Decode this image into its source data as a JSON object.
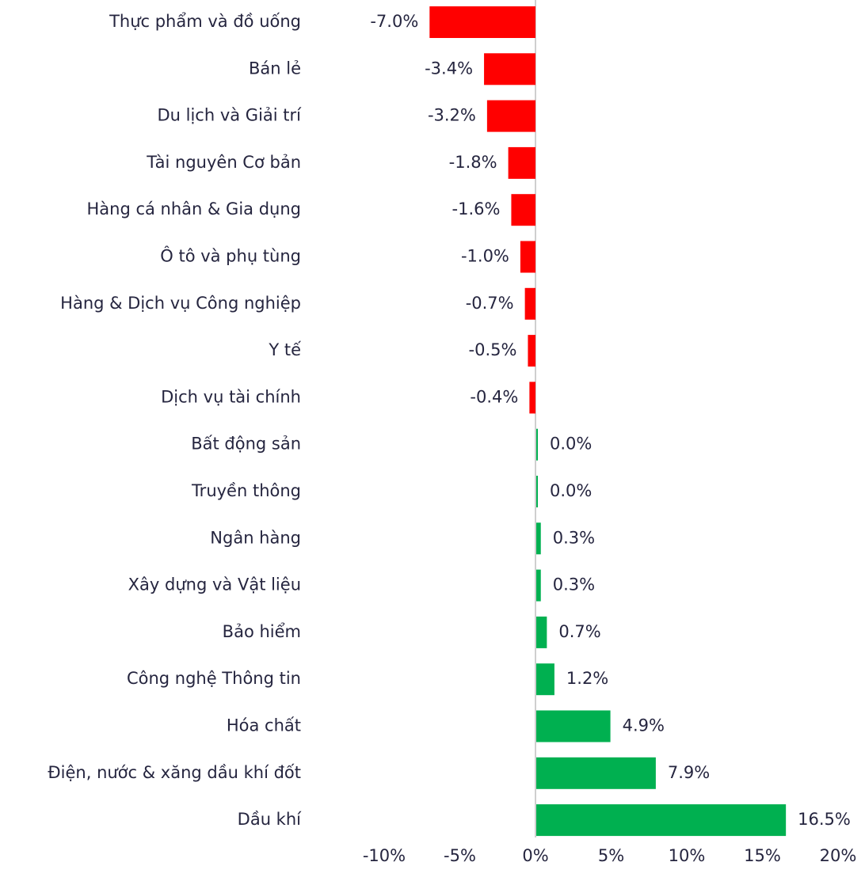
{
  "chart_data": {
    "type": "barh",
    "categories": [
      "Thực phẩm và đồ uống",
      "Bán lẻ",
      "Du lịch và Giải trí",
      "Tài nguyên Cơ bản",
      "Hàng cá nhân & Gia dụng",
      "Ô tô và phụ tùng",
      "Hàng & Dịch vụ Công nghiệp",
      "Y tế",
      "Dịch vụ tài chính",
      "Bất động sản",
      "Truyền thông",
      "Ngân hàng",
      "Xây dựng và Vật liệu",
      "Bảo hiểm",
      "Công nghệ Thông tin",
      "Hóa chất",
      "Điện, nước & xăng dầu khí đốt",
      "Dầu khí"
    ],
    "values": [
      -7.0,
      -3.4,
      -3.2,
      -1.8,
      -1.6,
      -1.0,
      -0.7,
      -0.5,
      -0.4,
      0.0,
      0.0,
      0.3,
      0.3,
      0.7,
      1.2,
      4.9,
      7.9,
      16.5
    ],
    "value_labels": [
      "-7.0%",
      "-3.4%",
      "-3.2%",
      "-1.8%",
      "-1.6%",
      "-1.0%",
      "-0.7%",
      "-0.5%",
      "-0.4%",
      "0.0%",
      "0.0%",
      "0.3%",
      "0.3%",
      "0.7%",
      "1.2%",
      "4.9%",
      "7.9%",
      "16.5%"
    ],
    "negative_color": "#ff0000",
    "positive_color": "#00b050",
    "xlim": [
      -10,
      20
    ],
    "xticks": [
      {
        "value": -10,
        "label": "-10%"
      },
      {
        "value": -5,
        "label": "-5%"
      },
      {
        "value": 0,
        "label": "0%"
      },
      {
        "value": 5,
        "label": "5%"
      },
      {
        "value": 10,
        "label": "10%"
      },
      {
        "value": 15,
        "label": "15%"
      },
      {
        "value": 20,
        "label": "20%"
      }
    ]
  }
}
